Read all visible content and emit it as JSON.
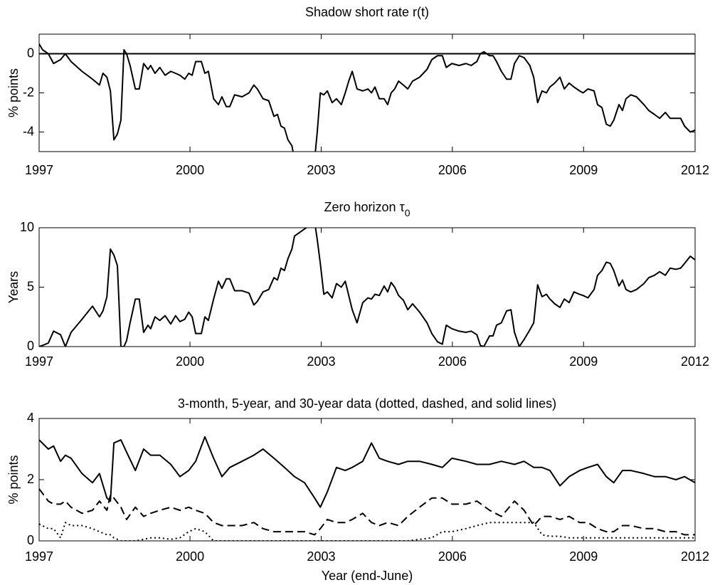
{
  "chart_data": [
    {
      "type": "line",
      "title": "Shadow short rate r(t)",
      "ylabel": "% points",
      "xlim": [
        1996.55,
        2011.55
      ],
      "xticks": [
        {
          "value": 1996.55,
          "label": "1997"
        },
        2000,
        2003,
        2006,
        2009,
        {
          "value": 2011.55,
          "label": "2012"
        }
      ],
      "ylim": [
        -5,
        1
      ],
      "yticks": [
        -4,
        -2,
        0
      ],
      "hlines": [
        0
      ],
      "x": [
        1996.55,
        1996.63,
        1996.76,
        1996.88,
        1997.04,
        1997.15,
        1997.28,
        1997.53,
        1997.77,
        1997.93,
        1998.01,
        1998.1,
        1998.18,
        1998.26,
        1998.34,
        1998.42,
        1998.49,
        1998.55,
        1998.63,
        1998.75,
        1998.84,
        1998.94,
        1999.04,
        1999.1,
        1999.2,
        1999.31,
        1999.43,
        1999.56,
        1999.67,
        1999.77,
        1999.88,
        1999.97,
        2000.05,
        2000.13,
        2000.26,
        2000.34,
        2000.42,
        2000.54,
        2000.65,
        2000.73,
        2000.83,
        2000.91,
        2001.02,
        2001.19,
        2001.35,
        2001.46,
        2001.54,
        2001.67,
        2001.8,
        2001.92,
        2002.0,
        2002.08,
        2002.16,
        2002.24,
        2002.33,
        2002.39,
        2002.85,
        2002.91,
        2002.98,
        2003.06,
        2003.14,
        2003.25,
        2003.35,
        2003.46,
        2003.55,
        2003.63,
        2003.71,
        2003.82,
        2003.95,
        2004.07,
        2004.15,
        2004.23,
        2004.33,
        2004.44,
        2004.52,
        2004.6,
        2004.68,
        2004.77,
        2004.88,
        2004.98,
        2005.09,
        2005.25,
        2005.42,
        2005.53,
        2005.66,
        2005.77,
        2005.86,
        2005.99,
        2006.15,
        2006.31,
        2006.43,
        2006.56,
        2006.64,
        2006.72,
        2006.85,
        2006.93,
        2007.01,
        2007.12,
        2007.24,
        2007.34,
        2007.42,
        2007.53,
        2007.64,
        2007.77,
        2007.86,
        2007.95,
        2008.05,
        2008.15,
        2008.23,
        2008.34,
        2008.46,
        2008.56,
        2008.67,
        2008.78,
        2008.91,
        2008.99,
        2009.1,
        2009.24,
        2009.32,
        2009.42,
        2009.52,
        2009.61,
        2009.69,
        2009.81,
        2009.89,
        2009.97,
        2010.08,
        2010.21,
        2010.38,
        2010.49,
        2010.62,
        2010.74,
        2010.87,
        2010.98,
        2011.11,
        2011.22,
        2011.31,
        2011.44,
        2011.55
      ],
      "series": [
        {
          "color": "#000000",
          "dash": "solid",
          "values": [
            0.5,
            0.2,
            0.0,
            -0.5,
            -0.3,
            0.0,
            -0.4,
            -0.9,
            -1.3,
            -1.6,
            -1.0,
            -1.2,
            -1.9,
            -4.4,
            -4.1,
            -3.4,
            0.2,
            0.0,
            -0.6,
            -1.8,
            -1.8,
            -0.5,
            -0.8,
            -0.6,
            -1.0,
            -0.7,
            -1.1,
            -0.9,
            -1.0,
            -1.1,
            -1.3,
            -1.0,
            -1.1,
            -0.4,
            -0.4,
            -1.0,
            -0.9,
            -2.3,
            -2.6,
            -2.2,
            -2.7,
            -2.7,
            -2.1,
            -2.2,
            -2.0,
            -1.6,
            -1.8,
            -2.3,
            -2.4,
            -3.2,
            -3.1,
            -3.7,
            -3.8,
            -4.4,
            -4.7,
            -5.4,
            -5.4,
            -4.0,
            -2.0,
            -2.1,
            -1.9,
            -2.5,
            -2.3,
            -2.6,
            -2.0,
            -1.4,
            -0.9,
            -1.8,
            -1.9,
            -1.8,
            -2.0,
            -1.7,
            -2.3,
            -2.3,
            -2.6,
            -2.0,
            -1.8,
            -1.4,
            -1.6,
            -1.8,
            -1.4,
            -1.2,
            -0.8,
            -0.3,
            -0.1,
            -0.1,
            -0.7,
            -0.5,
            -0.6,
            -0.5,
            -0.6,
            -0.4,
            0.0,
            0.1,
            -0.1,
            -0.1,
            -0.4,
            -0.9,
            -1.3,
            -1.3,
            -0.5,
            -0.1,
            -0.2,
            -0.6,
            -1.2,
            -2.5,
            -1.9,
            -2.0,
            -1.7,
            -1.5,
            -1.2,
            -1.8,
            -1.5,
            -1.7,
            -1.9,
            -2.0,
            -1.8,
            -1.9,
            -2.6,
            -2.75,
            -3.6,
            -3.7,
            -3.4,
            -2.6,
            -2.9,
            -2.3,
            -2.1,
            -2.2,
            -2.6,
            -2.9,
            -3.1,
            -3.3,
            -3.0,
            -3.3,
            -3.3,
            -3.3,
            -3.7,
            -4.0,
            -3.9
          ]
        }
      ]
    },
    {
      "type": "line",
      "title": "Zero horizon  τ",
      "title_subscript": "0",
      "ylabel": "Years",
      "xlim": [
        1996.55,
        2011.55
      ],
      "xticks": [
        {
          "value": 1996.55,
          "label": "1997"
        },
        2000,
        2003,
        2006,
        2009,
        {
          "value": 2011.55,
          "label": "2012"
        }
      ],
      "ylim": [
        0,
        10
      ],
      "yticks": [
        0,
        5,
        10
      ],
      "x": [
        1996.55,
        1996.63,
        1996.76,
        1996.88,
        1997.04,
        1997.15,
        1997.28,
        1997.53,
        1997.77,
        1997.93,
        1998.01,
        1998.1,
        1998.18,
        1998.26,
        1998.34,
        1998.42,
        1998.49,
        1998.55,
        1998.63,
        1998.75,
        1998.84,
        1998.94,
        1999.04,
        1999.1,
        1999.2,
        1999.31,
        1999.43,
        1999.56,
        1999.67,
        1999.77,
        1999.88,
        1999.97,
        2000.05,
        2000.13,
        2000.26,
        2000.34,
        2000.42,
        2000.54,
        2000.65,
        2000.73,
        2000.83,
        2000.91,
        2001.02,
        2001.19,
        2001.35,
        2001.46,
        2001.54,
        2001.67,
        2001.8,
        2001.92,
        2002.0,
        2002.08,
        2002.16,
        2002.24,
        2002.33,
        2002.39,
        2002.85,
        2002.91,
        2002.98,
        2003.06,
        2003.14,
        2003.25,
        2003.35,
        2003.46,
        2003.55,
        2003.63,
        2003.71,
        2003.82,
        2003.95,
        2004.07,
        2004.15,
        2004.23,
        2004.33,
        2004.44,
        2004.52,
        2004.6,
        2004.68,
        2004.77,
        2004.88,
        2004.98,
        2005.09,
        2005.25,
        2005.42,
        2005.53,
        2005.66,
        2005.77,
        2005.86,
        2005.99,
        2006.15,
        2006.31,
        2006.43,
        2006.56,
        2006.64,
        2006.72,
        2006.85,
        2006.93,
        2007.01,
        2007.12,
        2007.24,
        2007.34,
        2007.42,
        2007.53,
        2007.64,
        2007.77,
        2007.86,
        2007.95,
        2008.05,
        2008.15,
        2008.23,
        2008.34,
        2008.46,
        2008.56,
        2008.67,
        2008.78,
        2008.91,
        2008.99,
        2009.1,
        2009.24,
        2009.32,
        2009.42,
        2009.52,
        2009.61,
        2009.69,
        2009.81,
        2009.89,
        2009.97,
        2010.08,
        2010.21,
        2010.38,
        2010.49,
        2010.62,
        2010.74,
        2010.87,
        2010.98,
        2011.11,
        2011.22,
        2011.31,
        2011.44,
        2011.55
      ],
      "series": [
        {
          "color": "#000000",
          "dash": "solid",
          "values": [
            0,
            0.1,
            0.3,
            1.3,
            1.0,
            0,
            1.2,
            2.3,
            3.4,
            2.5,
            3.0,
            4.2,
            8.2,
            7.7,
            6.8,
            0,
            0,
            0.5,
            2.0,
            4.0,
            4.0,
            1.2,
            1.8,
            1.5,
            2.5,
            2.2,
            2.6,
            1.9,
            2.6,
            2.1,
            2.3,
            2.9,
            2.5,
            1.1,
            1.1,
            2.5,
            2.2,
            4.0,
            5.5,
            4.9,
            5.7,
            5.7,
            4.7,
            4.7,
            4.5,
            3.5,
            3.8,
            4.6,
            4.8,
            5.8,
            5.6,
            6.6,
            6.4,
            7.4,
            8.2,
            9.3,
            10.5,
            9.0,
            7.0,
            4.4,
            4.6,
            4.1,
            5.3,
            5.0,
            5.5,
            4.3,
            3.1,
            2.0,
            3.7,
            4.1,
            4.0,
            4.4,
            4.3,
            5.1,
            4.6,
            5.4,
            5.0,
            4.3,
            3.9,
            3.1,
            3.6,
            2.9,
            2.0,
            1.1,
            0.4,
            0.2,
            1.8,
            1.5,
            1.3,
            1.2,
            1.3,
            1.0,
            0.1,
            0,
            0.9,
            0.9,
            1.8,
            2.0,
            3.0,
            3.1,
            1.2,
            0,
            0.6,
            1.4,
            2.0,
            5.2,
            4.2,
            4.4,
            4.0,
            3.6,
            3.3,
            4.0,
            3.7,
            4.6,
            4.4,
            4.3,
            4.1,
            4.8,
            6.0,
            6.4,
            7.1,
            7.0,
            6.4,
            5.1,
            5.6,
            4.8,
            4.6,
            4.8,
            5.3,
            5.8,
            6.0,
            6.3,
            6.0,
            6.6,
            6.5,
            6.6,
            7.0,
            7.6,
            7.3
          ]
        }
      ]
    },
    {
      "type": "line",
      "title": "3-month, 5-year, and 30-year data (dotted, dashed, and solid lines)",
      "ylabel": "% points",
      "xlabel": "Year (end-June)",
      "xlim": [
        1996.55,
        2011.55
      ],
      "xticks": [
        {
          "value": 1996.55,
          "label": "1997"
        },
        2000,
        2003,
        2006,
        2009,
        {
          "value": 2011.55,
          "label": "2012"
        }
      ],
      "ylim": [
        0,
        4
      ],
      "yticks": [
        0,
        2,
        4
      ],
      "x": [
        1996.55,
        1996.76,
        1996.88,
        1997.04,
        1997.15,
        1997.28,
        1997.53,
        1997.77,
        1997.93,
        1998.1,
        1998.18,
        1998.26,
        1998.42,
        1998.55,
        1998.75,
        1998.94,
        1999.1,
        1999.31,
        1999.56,
        1999.77,
        1999.97,
        2000.13,
        2000.34,
        2000.54,
        2000.73,
        2000.91,
        2001.19,
        2001.46,
        2001.67,
        2001.92,
        2002.16,
        2002.39,
        2002.62,
        2002.85,
        2002.98,
        2003.14,
        2003.35,
        2003.55,
        2003.71,
        2003.95,
        2004.15,
        2004.33,
        2004.52,
        2004.77,
        2004.98,
        2005.25,
        2005.53,
        2005.77,
        2005.99,
        2006.31,
        2006.56,
        2006.85,
        2007.12,
        2007.42,
        2007.64,
        2007.86,
        2008.05,
        2008.23,
        2008.46,
        2008.67,
        2008.91,
        2009.1,
        2009.32,
        2009.52,
        2009.69,
        2009.89,
        2010.08,
        2010.38,
        2010.62,
        2010.87,
        2011.11,
        2011.31,
        2011.55
      ],
      "series": [
        {
          "color": "#000000",
          "dash": "dotted",
          "values": [
            0.55,
            0.4,
            0.4,
            0.1,
            0.6,
            0.5,
            0.5,
            0.4,
            0.3,
            0.2,
            0.2,
            0.1,
            0,
            0,
            0,
            0.05,
            0.1,
            0.1,
            0.05,
            0.1,
            0.3,
            0.4,
            0.3,
            0,
            0,
            0,
            0,
            0,
            0,
            0,
            0,
            0,
            0,
            0,
            0,
            0,
            0,
            0,
            0,
            0,
            0,
            0,
            0,
            0,
            0,
            0.05,
            0.1,
            0.3,
            0.3,
            0.4,
            0.5,
            0.6,
            0.6,
            0.6,
            0.6,
            0.6,
            0.2,
            0.15,
            0.15,
            0.1,
            0.1,
            0.1,
            0.1,
            0.1,
            0.1,
            0.1,
            0.1,
            0.1,
            0.1,
            0.1,
            0.1,
            0.1,
            0.1
          ]
        },
        {
          "color": "#000000",
          "dash": "dashed",
          "values": [
            1.7,
            1.3,
            1.2,
            1.2,
            1.3,
            1.1,
            0.9,
            1.0,
            1.3,
            1.0,
            1.5,
            1.4,
            1.1,
            0.7,
            1.1,
            0.8,
            0.9,
            1.0,
            1.1,
            1.0,
            1.1,
            1.0,
            0.9,
            0.6,
            0.5,
            0.5,
            0.5,
            0.6,
            0.4,
            0.3,
            0.3,
            0.3,
            0.3,
            0.2,
            0.4,
            0.7,
            0.6,
            0.6,
            0.7,
            0.9,
            0.6,
            0.5,
            0.6,
            0.5,
            0.8,
            1.1,
            1.4,
            1.4,
            1.2,
            1.2,
            1.3,
            1.0,
            0.8,
            1.3,
            1.0,
            0.5,
            0.8,
            0.8,
            0.7,
            0.8,
            0.6,
            0.6,
            0.4,
            0.3,
            0.3,
            0.5,
            0.5,
            0.4,
            0.4,
            0.3,
            0.3,
            0.2,
            0.2
          ]
        },
        {
          "color": "#000000",
          "dash": "solid",
          "values": [
            3.3,
            3.0,
            3.1,
            2.6,
            2.8,
            2.7,
            2.2,
            1.9,
            2.2,
            1.4,
            1.3,
            3.2,
            3.3,
            2.9,
            2.3,
            3.0,
            2.8,
            2.8,
            2.5,
            2.1,
            2.3,
            2.6,
            3.4,
            2.7,
            2.1,
            2.4,
            2.6,
            2.8,
            3.0,
            2.7,
            2.4,
            2.1,
            1.9,
            1.4,
            1.1,
            1.6,
            2.4,
            2.3,
            2.4,
            2.6,
            3.2,
            2.7,
            2.6,
            2.5,
            2.6,
            2.6,
            2.5,
            2.4,
            2.7,
            2.6,
            2.5,
            2.5,
            2.6,
            2.5,
            2.6,
            2.4,
            2.4,
            2.3,
            1.8,
            2.1,
            2.3,
            2.4,
            2.5,
            2.1,
            1.9,
            2.3,
            2.3,
            2.2,
            2.1,
            2.1,
            2.0,
            2.1,
            1.9
          ]
        }
      ]
    }
  ]
}
